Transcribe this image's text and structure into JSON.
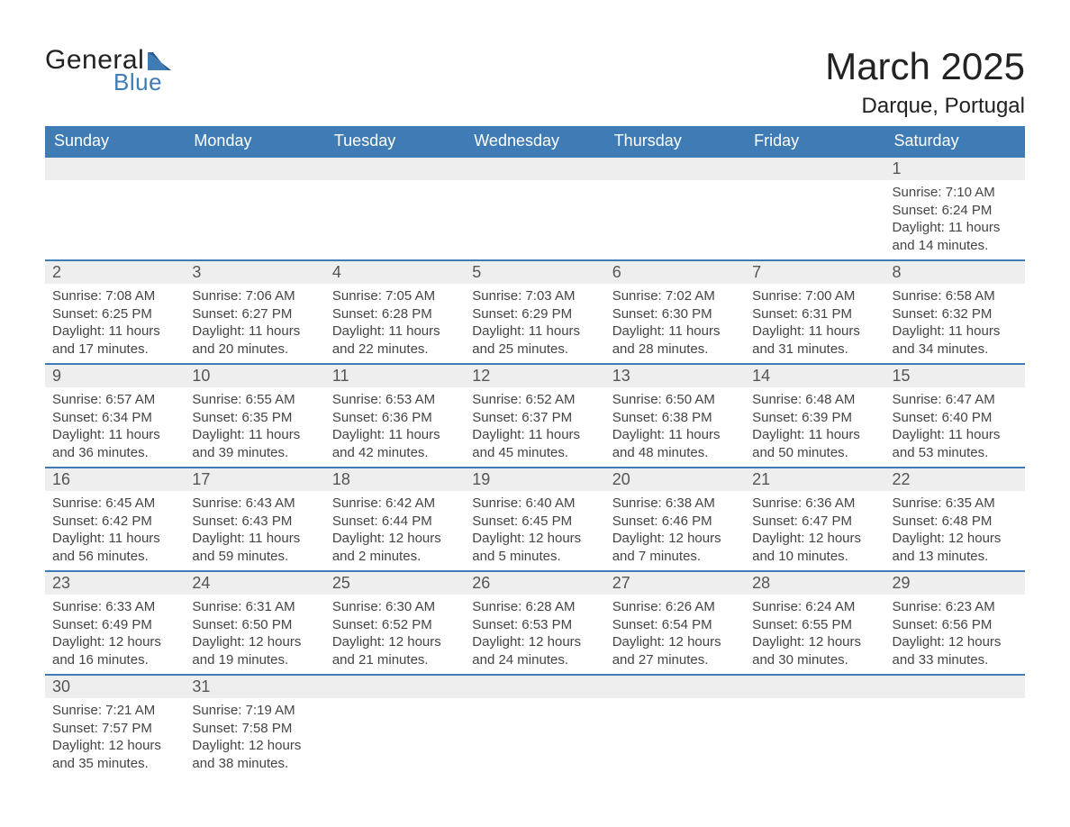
{
  "brand": {
    "general": "General",
    "blue": "Blue",
    "logo_color": "#3f7cb5"
  },
  "title": "March 2025",
  "location": "Darque, Portugal",
  "colors": {
    "header_bg": "#3f7cb5",
    "header_text": "#ffffff",
    "daynum_bg": "#eeeeee",
    "row_border": "#3f7cb5",
    "body_text": "#444444",
    "page_bg": "#ffffff"
  },
  "weekdays": [
    "Sunday",
    "Monday",
    "Tuesday",
    "Wednesday",
    "Thursday",
    "Friday",
    "Saturday"
  ],
  "weeks": [
    [
      null,
      null,
      null,
      null,
      null,
      null,
      {
        "n": "1",
        "sunrise": "Sunrise: 7:10 AM",
        "sunset": "Sunset: 6:24 PM",
        "day1": "Daylight: 11 hours",
        "day2": "and 14 minutes."
      }
    ],
    [
      {
        "n": "2",
        "sunrise": "Sunrise: 7:08 AM",
        "sunset": "Sunset: 6:25 PM",
        "day1": "Daylight: 11 hours",
        "day2": "and 17 minutes."
      },
      {
        "n": "3",
        "sunrise": "Sunrise: 7:06 AM",
        "sunset": "Sunset: 6:27 PM",
        "day1": "Daylight: 11 hours",
        "day2": "and 20 minutes."
      },
      {
        "n": "4",
        "sunrise": "Sunrise: 7:05 AM",
        "sunset": "Sunset: 6:28 PM",
        "day1": "Daylight: 11 hours",
        "day2": "and 22 minutes."
      },
      {
        "n": "5",
        "sunrise": "Sunrise: 7:03 AM",
        "sunset": "Sunset: 6:29 PM",
        "day1": "Daylight: 11 hours",
        "day2": "and 25 minutes."
      },
      {
        "n": "6",
        "sunrise": "Sunrise: 7:02 AM",
        "sunset": "Sunset: 6:30 PM",
        "day1": "Daylight: 11 hours",
        "day2": "and 28 minutes."
      },
      {
        "n": "7",
        "sunrise": "Sunrise: 7:00 AM",
        "sunset": "Sunset: 6:31 PM",
        "day1": "Daylight: 11 hours",
        "day2": "and 31 minutes."
      },
      {
        "n": "8",
        "sunrise": "Sunrise: 6:58 AM",
        "sunset": "Sunset: 6:32 PM",
        "day1": "Daylight: 11 hours",
        "day2": "and 34 minutes."
      }
    ],
    [
      {
        "n": "9",
        "sunrise": "Sunrise: 6:57 AM",
        "sunset": "Sunset: 6:34 PM",
        "day1": "Daylight: 11 hours",
        "day2": "and 36 minutes."
      },
      {
        "n": "10",
        "sunrise": "Sunrise: 6:55 AM",
        "sunset": "Sunset: 6:35 PM",
        "day1": "Daylight: 11 hours",
        "day2": "and 39 minutes."
      },
      {
        "n": "11",
        "sunrise": "Sunrise: 6:53 AM",
        "sunset": "Sunset: 6:36 PM",
        "day1": "Daylight: 11 hours",
        "day2": "and 42 minutes."
      },
      {
        "n": "12",
        "sunrise": "Sunrise: 6:52 AM",
        "sunset": "Sunset: 6:37 PM",
        "day1": "Daylight: 11 hours",
        "day2": "and 45 minutes."
      },
      {
        "n": "13",
        "sunrise": "Sunrise: 6:50 AM",
        "sunset": "Sunset: 6:38 PM",
        "day1": "Daylight: 11 hours",
        "day2": "and 48 minutes."
      },
      {
        "n": "14",
        "sunrise": "Sunrise: 6:48 AM",
        "sunset": "Sunset: 6:39 PM",
        "day1": "Daylight: 11 hours",
        "day2": "and 50 minutes."
      },
      {
        "n": "15",
        "sunrise": "Sunrise: 6:47 AM",
        "sunset": "Sunset: 6:40 PM",
        "day1": "Daylight: 11 hours",
        "day2": "and 53 minutes."
      }
    ],
    [
      {
        "n": "16",
        "sunrise": "Sunrise: 6:45 AM",
        "sunset": "Sunset: 6:42 PM",
        "day1": "Daylight: 11 hours",
        "day2": "and 56 minutes."
      },
      {
        "n": "17",
        "sunrise": "Sunrise: 6:43 AM",
        "sunset": "Sunset: 6:43 PM",
        "day1": "Daylight: 11 hours",
        "day2": "and 59 minutes."
      },
      {
        "n": "18",
        "sunrise": "Sunrise: 6:42 AM",
        "sunset": "Sunset: 6:44 PM",
        "day1": "Daylight: 12 hours",
        "day2": "and 2 minutes."
      },
      {
        "n": "19",
        "sunrise": "Sunrise: 6:40 AM",
        "sunset": "Sunset: 6:45 PM",
        "day1": "Daylight: 12 hours",
        "day2": "and 5 minutes."
      },
      {
        "n": "20",
        "sunrise": "Sunrise: 6:38 AM",
        "sunset": "Sunset: 6:46 PM",
        "day1": "Daylight: 12 hours",
        "day2": "and 7 minutes."
      },
      {
        "n": "21",
        "sunrise": "Sunrise: 6:36 AM",
        "sunset": "Sunset: 6:47 PM",
        "day1": "Daylight: 12 hours",
        "day2": "and 10 minutes."
      },
      {
        "n": "22",
        "sunrise": "Sunrise: 6:35 AM",
        "sunset": "Sunset: 6:48 PM",
        "day1": "Daylight: 12 hours",
        "day2": "and 13 minutes."
      }
    ],
    [
      {
        "n": "23",
        "sunrise": "Sunrise: 6:33 AM",
        "sunset": "Sunset: 6:49 PM",
        "day1": "Daylight: 12 hours",
        "day2": "and 16 minutes."
      },
      {
        "n": "24",
        "sunrise": "Sunrise: 6:31 AM",
        "sunset": "Sunset: 6:50 PM",
        "day1": "Daylight: 12 hours",
        "day2": "and 19 minutes."
      },
      {
        "n": "25",
        "sunrise": "Sunrise: 6:30 AM",
        "sunset": "Sunset: 6:52 PM",
        "day1": "Daylight: 12 hours",
        "day2": "and 21 minutes."
      },
      {
        "n": "26",
        "sunrise": "Sunrise: 6:28 AM",
        "sunset": "Sunset: 6:53 PM",
        "day1": "Daylight: 12 hours",
        "day2": "and 24 minutes."
      },
      {
        "n": "27",
        "sunrise": "Sunrise: 6:26 AM",
        "sunset": "Sunset: 6:54 PM",
        "day1": "Daylight: 12 hours",
        "day2": "and 27 minutes."
      },
      {
        "n": "28",
        "sunrise": "Sunrise: 6:24 AM",
        "sunset": "Sunset: 6:55 PM",
        "day1": "Daylight: 12 hours",
        "day2": "and 30 minutes."
      },
      {
        "n": "29",
        "sunrise": "Sunrise: 6:23 AM",
        "sunset": "Sunset: 6:56 PM",
        "day1": "Daylight: 12 hours",
        "day2": "and 33 minutes."
      }
    ],
    [
      {
        "n": "30",
        "sunrise": "Sunrise: 7:21 AM",
        "sunset": "Sunset: 7:57 PM",
        "day1": "Daylight: 12 hours",
        "day2": "and 35 minutes."
      },
      {
        "n": "31",
        "sunrise": "Sunrise: 7:19 AM",
        "sunset": "Sunset: 7:58 PM",
        "day1": "Daylight: 12 hours",
        "day2": "and 38 minutes."
      },
      null,
      null,
      null,
      null,
      null
    ]
  ]
}
